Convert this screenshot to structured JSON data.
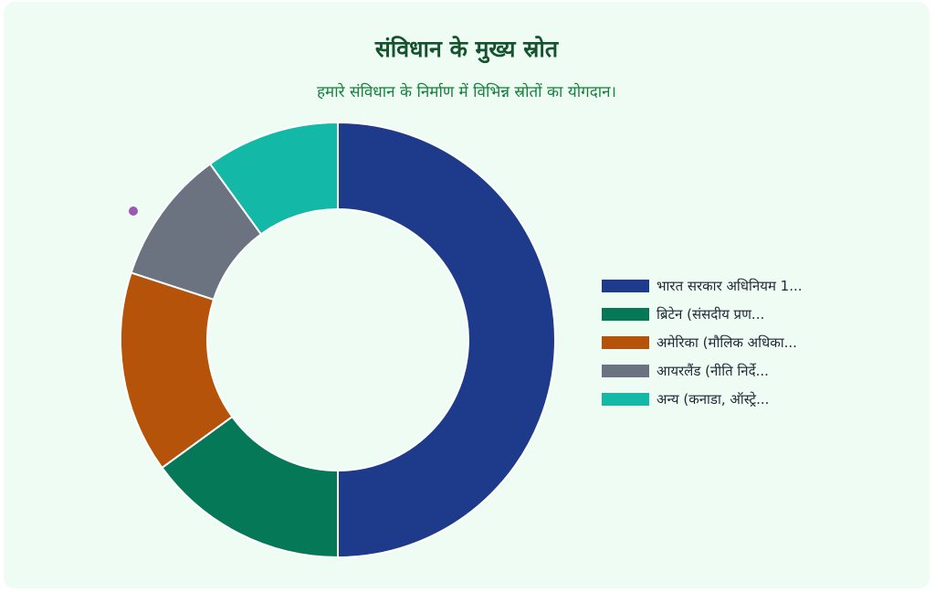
{
  "chart_data": {
    "type": "doughnut",
    "title": "संविधान के मुख्य स्रोत",
    "subtitle": "हमारे संविधान के निर्माण में विभिन्न स्रोतों का योगदान।",
    "legend_position": "right",
    "categories": [
      "भारत सरकार अधिनियम 1...",
      "ब्रिटेन (संसदीय प्रण...",
      "अमेरिका (मौलिक अधिका...",
      "आयरलैंड (नीति निर्दे...",
      "अन्य (कनाडा, ऑस्ट्रे..."
    ],
    "values": [
      50,
      15,
      15,
      10,
      10
    ],
    "colors": [
      "#1e3a8a",
      "#047857",
      "#b45309",
      "#6b7280",
      "#14b8a6"
    ]
  }
}
